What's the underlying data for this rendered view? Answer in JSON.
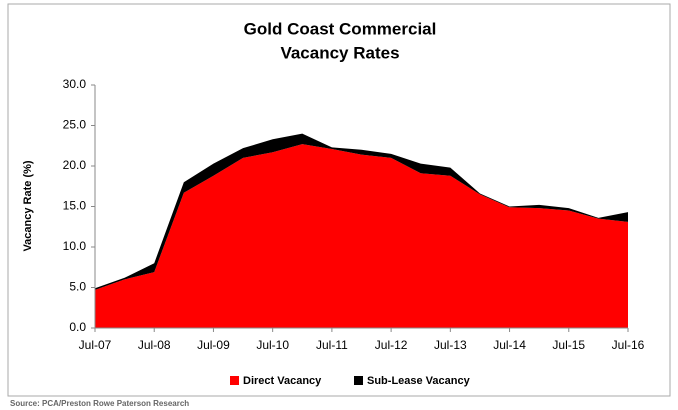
{
  "chart_data": {
    "type": "stacked_area",
    "title": [
      "Gold Coast Commercial",
      "Vacancy Rates"
    ],
    "y_label": "Vacancy Rate (%)",
    "source": "Source: PCA/Preston Rowe Paterson Research",
    "categories": [
      "Jul-07",
      null,
      "Jul-08",
      null,
      "Jul-09",
      null,
      "Jul-10",
      null,
      "Jul-11",
      null,
      "Jul-12",
      null,
      "Jul-13",
      null,
      "Jul-14",
      null,
      "Jul-15",
      null,
      "Jul-16"
    ],
    "series": [
      {
        "name": "Direct Vacancy",
        "color": "#ff0000",
        "values": [
          4.7,
          6.0,
          6.9,
          16.7,
          18.8,
          21.0,
          21.7,
          22.7,
          22.1,
          21.4,
          21.0,
          19.1,
          18.8,
          16.5,
          14.9,
          14.8,
          14.5,
          13.5,
          13.1
        ]
      },
      {
        "name": "Sub-Lease Vacancy",
        "color": "#000000",
        "values": [
          0.2,
          0.2,
          1.1,
          1.3,
          1.5,
          1.2,
          1.6,
          1.3,
          0.2,
          0.6,
          0.5,
          1.2,
          1.0,
          0.1,
          0.1,
          0.4,
          0.3,
          0.1,
          1.2
        ]
      }
    ],
    "ylim": [
      0,
      30
    ],
    "yticks": [
      {
        "value": 0,
        "label": "0.0"
      },
      {
        "value": 5,
        "label": "5.0"
      },
      {
        "value": 10,
        "label": "10.0"
      },
      {
        "value": 15,
        "label": "15.0"
      },
      {
        "value": 20,
        "label": "20.0"
      },
      {
        "value": 25,
        "label": "25.0"
      },
      {
        "value": 30,
        "label": "30.0"
      }
    ],
    "legend": "bottom"
  }
}
